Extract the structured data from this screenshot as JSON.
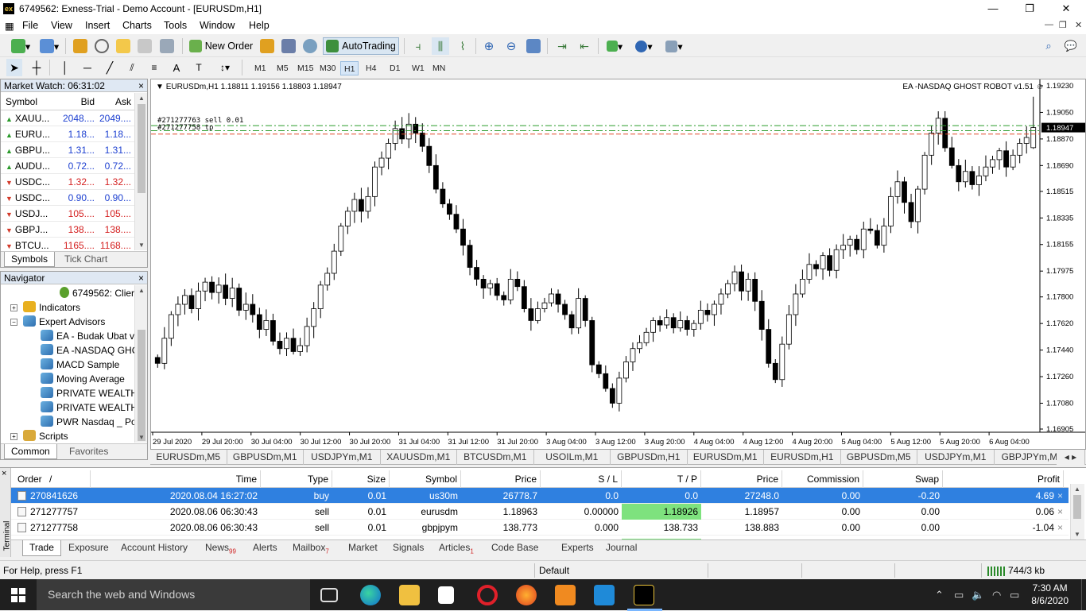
{
  "window": {
    "title": "6749562: Exness-Trial - Demo Account - [EURUSDm,H1]",
    "logo": "exness-logo",
    "minimize": "—",
    "restore": "❐",
    "close": "✕"
  },
  "menu": [
    "File",
    "View",
    "Insert",
    "Charts",
    "Tools",
    "Window",
    "Help"
  ],
  "toolbar": {
    "new_order": "New Order",
    "autotrading": "AutoTrading"
  },
  "timeframes": [
    "M1",
    "M5",
    "M15",
    "M30",
    "H1",
    "H4",
    "D1",
    "W1",
    "MN"
  ],
  "active_timeframe": "H1",
  "market_watch": {
    "title": "Market Watch: 06:31:02",
    "headers": [
      "Symbol",
      "Bid",
      "Ask"
    ],
    "rows": [
      {
        "symbol": "XAUU...",
        "bid": "2048....",
        "ask": "2049....",
        "dir": "up",
        "color": "blue"
      },
      {
        "symbol": "EURU...",
        "bid": "1.18...",
        "ask": "1.18...",
        "dir": "up",
        "color": "blue"
      },
      {
        "symbol": "GBPU...",
        "bid": "1.31...",
        "ask": "1.31...",
        "dir": "up",
        "color": "blue"
      },
      {
        "symbol": "AUDU...",
        "bid": "0.72...",
        "ask": "0.72...",
        "dir": "up",
        "color": "blue"
      },
      {
        "symbol": "USDC...",
        "bid": "1.32...",
        "ask": "1.32...",
        "dir": "down",
        "color": "red"
      },
      {
        "symbol": "USDC...",
        "bid": "0.90...",
        "ask": "0.90...",
        "dir": "down",
        "color": "blue"
      },
      {
        "symbol": "USDJ...",
        "bid": "105....",
        "ask": "105....",
        "dir": "down",
        "color": "red"
      },
      {
        "symbol": "GBPJ...",
        "bid": "138....",
        "ask": "138....",
        "dir": "down",
        "color": "red"
      },
      {
        "symbol": "BTCU...",
        "bid": "1165....",
        "ask": "1168....",
        "dir": "down",
        "color": "red"
      }
    ],
    "tabs": [
      "Symbols",
      "Tick Chart"
    ]
  },
  "navigator": {
    "title": "Navigator",
    "account": "6749562: Clier",
    "indicators": "Indicators",
    "experts": "Expert Advisors",
    "ea_items": [
      "EA - Budak Ubat v",
      "EA -NASDAQ GHC",
      "MACD Sample",
      "Moving Average",
      "PRIVATE WEALTH",
      "PRIVATE WEALTH",
      "PWR Nasdaq _ Po"
    ],
    "scripts": "Scripts",
    "tabs": [
      "Common",
      "Favorites"
    ]
  },
  "chart": {
    "header": "EURUSDm,H1  1.18811 1.19156 1.18803 1.18947",
    "ea_label": "EA -NASDAQ GHOST ROBOT v1.51",
    "order_label_1": "#271277763 sell 0.01",
    "order_label_2": "#271277758 tp",
    "current_price": "1.18947",
    "price_labels": [
      "1.19230",
      "1.19050",
      "1.18870",
      "1.18690",
      "1.18515",
      "1.18335",
      "1.18155",
      "1.17975",
      "1.17800",
      "1.17620",
      "1.17440",
      "1.17260",
      "1.17080",
      "1.16905"
    ],
    "time_labels": [
      "29 Jul 2020",
      "29 Jul 20:00",
      "30 Jul 04:00",
      "30 Jul 12:00",
      "30 Jul 20:00",
      "31 Jul 04:00",
      "31 Jul 12:00",
      "31 Jul 20:00",
      "3 Aug 04:00",
      "3 Aug 12:00",
      "3 Aug 20:00",
      "4 Aug 04:00",
      "4 Aug 12:00",
      "4 Aug 20:00",
      "5 Aug 04:00",
      "5 Aug 12:00",
      "5 Aug 20:00",
      "6 Aug 04:00"
    ],
    "chart_data": {
      "type": "candlestick",
      "symbol": "EURUSDm",
      "timeframe": "H1",
      "ylim": [
        1.16905,
        1.1923
      ],
      "last": {
        "open": 1.18811,
        "high": 1.19156,
        "low": 1.18803,
        "close": 1.18947
      },
      "lines": [
        {
          "name": "sell order",
          "price": 1.1896,
          "color": "#2a9a2a",
          "style": "dash-dot"
        },
        {
          "name": "take profit",
          "price": 1.18926,
          "color": "#2a9a2a",
          "style": "dash-dot"
        },
        {
          "name": "ask",
          "price": 1.18903,
          "color": "#e04a2a",
          "style": "dashed"
        }
      ],
      "closes": [
        1.1735,
        1.1752,
        1.1768,
        1.1775,
        1.1781,
        1.1772,
        1.1784,
        1.179,
        1.1783,
        1.1788,
        1.1779,
        1.1786,
        1.1771,
        1.1775,
        1.1768,
        1.1758,
        1.1764,
        1.175,
        1.1745,
        1.1752,
        1.1743,
        1.1747,
        1.176,
        1.1772,
        1.1788,
        1.1796,
        1.1811,
        1.1828,
        1.1838,
        1.1846,
        1.1838,
        1.1848,
        1.1868,
        1.1874,
        1.1884,
        1.1894,
        1.1887,
        1.1897,
        1.1891,
        1.1882,
        1.1869,
        1.1853,
        1.1843,
        1.1836,
        1.1826,
        1.1815,
        1.18,
        1.1792,
        1.1786,
        1.1789,
        1.1781,
        1.1778,
        1.1792,
        1.1787,
        1.1772,
        1.1764,
        1.1772,
        1.1776,
        1.1782,
        1.1775,
        1.1768,
        1.1759,
        1.1779,
        1.1764,
        1.1734,
        1.1728,
        1.1718,
        1.1708,
        1.1725,
        1.1736,
        1.1745,
        1.1749,
        1.1756,
        1.1764,
        1.1761,
        1.1766,
        1.1759,
        1.1764,
        1.1758,
        1.1762,
        1.1771,
        1.1768,
        1.1775,
        1.1782,
        1.1789,
        1.1797,
        1.1784,
        1.1792,
        1.1777,
        1.1758,
        1.1735,
        1.1724,
        1.1748,
        1.1768,
        1.1782,
        1.1792,
        1.1802,
        1.1799,
        1.1808,
        1.1798,
        1.1812,
        1.1815,
        1.1819,
        1.1812,
        1.1826,
        1.1825,
        1.1815,
        1.1828,
        1.1848,
        1.1858,
        1.1844,
        1.1831,
        1.1853,
        1.1876,
        1.1891,
        1.1901,
        1.1881,
        1.1869,
        1.1858,
        1.1865,
        1.1856,
        1.1862,
        1.1868,
        1.1873,
        1.1879,
        1.1868,
        1.1876,
        1.1884,
        1.1888,
        1.1895
      ]
    }
  },
  "chart_tabs": [
    "EURUSDm,M5",
    "GBPUSDm,M1",
    "USDJPYm,M1",
    "XAUUSDm,M1",
    "BTCUSDm,M1",
    "USOILm,M1",
    "GBPUSDm,H1",
    "EURUSDm,M1",
    "EURUSDm,H1",
    "GBPUSDm,M5",
    "USDJPYm,M1",
    "GBPJPYm,M5"
  ],
  "terminal": {
    "label": "Terminal",
    "headers": [
      "Order",
      "/",
      "Time",
      "Type",
      "Size",
      "Symbol",
      "Price",
      "S / L",
      "T / P",
      "Price",
      "Commission",
      "Swap",
      "Profit"
    ],
    "rows": [
      {
        "order": "270841626",
        "time": "2020.08.04 16:27:02",
        "type": "buy",
        "size": "0.01",
        "symbol": "us30m",
        "price": "26778.7",
        "sl": "0.0",
        "tp": "0.0",
        "price2": "27248.0",
        "commission": "0.00",
        "swap": "-0.20",
        "profit": "4.69"
      },
      {
        "order": "271277757",
        "time": "2020.08.06 06:30:43",
        "type": "sell",
        "size": "0.01",
        "symbol": "eurusdm",
        "price": "1.18963",
        "sl": "0.00000",
        "tp": "1.18926",
        "price2": "1.18957",
        "commission": "0.00",
        "swap": "0.00",
        "profit": "0.06"
      },
      {
        "order": "271277758",
        "time": "2020.08.06 06:30:43",
        "type": "sell",
        "size": "0.01",
        "symbol": "gbpjpym",
        "price": "138.773",
        "sl": "0.000",
        "tp": "138.733",
        "price2": "138.883",
        "commission": "0.00",
        "swap": "0.00",
        "profit": "-1.04"
      }
    ],
    "tabs": [
      {
        "label": "Trade",
        "badge": ""
      },
      {
        "label": "Exposure",
        "badge": ""
      },
      {
        "label": "Account History",
        "badge": ""
      },
      {
        "label": "News",
        "badge": "99"
      },
      {
        "label": "Alerts",
        "badge": ""
      },
      {
        "label": "Mailbox",
        "badge": "7"
      },
      {
        "label": "Market",
        "badge": ""
      },
      {
        "label": "Signals",
        "badge": ""
      },
      {
        "label": "Articles",
        "badge": "1"
      },
      {
        "label": "Code Base",
        "badge": ""
      },
      {
        "label": "Experts",
        "badge": ""
      },
      {
        "label": "Journal",
        "badge": ""
      }
    ]
  },
  "status": {
    "help": "For Help, press F1",
    "profile": "Default",
    "traffic": "744/3 kb"
  },
  "taskbar": {
    "search_placeholder": "Search the web and Windows",
    "time": "7:30 AM",
    "date": "8/6/2020"
  }
}
